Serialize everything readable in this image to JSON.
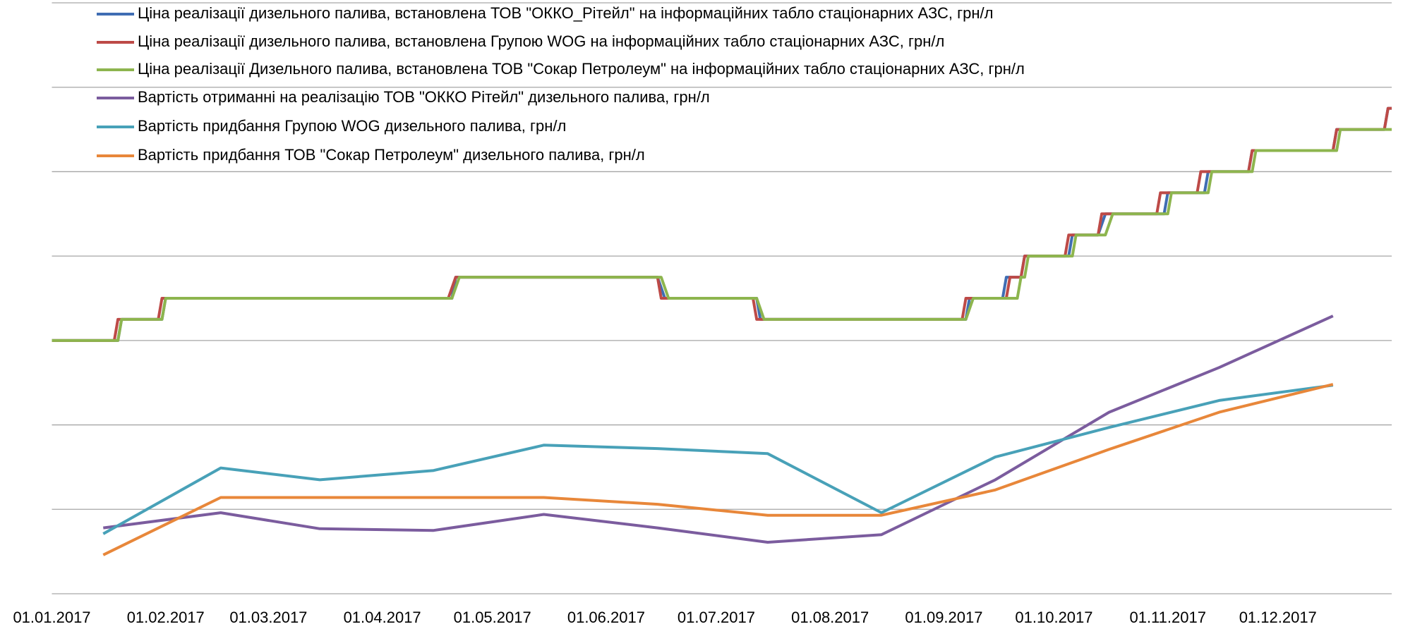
{
  "chart_data": {
    "type": "line",
    "xlim": [
      0,
      365
    ],
    "xticks": [
      {
        "value": 0,
        "label": "01.01.2017"
      },
      {
        "value": 31,
        "label": "01.02.2017"
      },
      {
        "value": 59,
        "label": "01.03.2017"
      },
      {
        "value": 90,
        "label": "01.04.2017"
      },
      {
        "value": 120,
        "label": "01.05.2017"
      },
      {
        "value": 151,
        "label": "01.06.2017"
      },
      {
        "value": 181,
        "label": "01.07.2017"
      },
      {
        "value": 212,
        "label": "01.08.2017"
      },
      {
        "value": 243,
        "label": "01.09.2017"
      },
      {
        "value": 273,
        "label": "01.10.2017"
      },
      {
        "value": 304,
        "label": "01.11.2017"
      },
      {
        "value": 334,
        "label": "01.12.2017"
      }
    ],
    "ylim": [
      0,
      7
    ],
    "yticks": [
      0,
      1,
      2,
      3,
      4,
      5,
      6,
      7
    ],
    "grid": true,
    "legend": "top",
    "series": [
      {
        "name": "Ціна реалізації дизельного палива, встановлена ТОВ \"ОККО_Рітейл\" на інформаційних табло стаціонарних АЗС, грн/л",
        "color": "#3f6db3",
        "x": [
          0,
          18,
          19,
          30,
          31,
          109,
          110,
          165,
          167,
          192,
          193,
          249,
          250,
          259,
          260,
          264,
          265,
          277,
          278,
          285,
          287,
          303,
          304,
          314,
          315,
          326,
          327,
          349,
          350,
          363,
          364,
          365
        ],
        "values": [
          3,
          3,
          3.25,
          3.25,
          3.5,
          3.5,
          3.75,
          3.75,
          3.5,
          3.5,
          3.25,
          3.25,
          3.5,
          3.5,
          3.75,
          3.75,
          4,
          4,
          4.25,
          4.25,
          4.5,
          4.5,
          4.75,
          4.75,
          5,
          5,
          5.25,
          5.25,
          5.5,
          5.5,
          5.75,
          5.75
        ]
      },
      {
        "name": "Ціна реалізації дизельного палива, встановлена Групою WOG на інформаційних табло стаціонарних АЗС, грн/л",
        "color": "#bd4a47",
        "x": [
          0,
          17,
          18,
          29,
          30,
          108,
          110,
          165,
          166,
          191,
          192,
          248,
          249,
          260,
          261,
          264,
          265,
          276,
          277,
          285,
          286,
          301,
          302,
          312,
          313,
          326,
          327,
          349,
          350,
          363,
          364,
          365
        ],
        "values": [
          3,
          3,
          3.25,
          3.25,
          3.5,
          3.5,
          3.75,
          3.75,
          3.5,
          3.5,
          3.25,
          3.25,
          3.5,
          3.5,
          3.75,
          3.75,
          4,
          4,
          4.25,
          4.25,
          4.5,
          4.5,
          4.75,
          4.75,
          5,
          5,
          5.25,
          5.25,
          5.5,
          5.5,
          5.75,
          5.75
        ]
      },
      {
        "name": "Ціна реалізації Дизельного палива, встановлена ТОВ \"Сокар Петролеум\" на інформаційних табло стаціонарних АЗС, грн/л",
        "color": "#8db54e",
        "x": [
          0,
          18,
          19,
          30,
          31,
          109,
          111,
          166,
          168,
          192,
          194,
          249,
          251,
          263,
          264,
          265,
          266,
          278,
          279,
          287,
          289,
          304,
          305,
          315,
          316,
          327,
          328,
          350,
          351,
          365
        ],
        "values": [
          3,
          3,
          3.25,
          3.25,
          3.5,
          3.5,
          3.75,
          3.75,
          3.5,
          3.5,
          3.25,
          3.25,
          3.5,
          3.5,
          3.75,
          3.75,
          4,
          4,
          4.25,
          4.25,
          4.5,
          4.5,
          4.75,
          4.75,
          5,
          5,
          5.25,
          5.25,
          5.5,
          5.5
        ]
      },
      {
        "name": "Вартість отриманні на реалізацію ТОВ \"ОККО Рітейл\" дизельного палива, грн/л",
        "color": "#7b5c9e",
        "x": [
          14,
          46,
          73,
          104,
          134,
          165,
          195,
          226,
          257,
          288,
          318,
          349
        ],
        "values": [
          0.78,
          0.96,
          0.77,
          0.75,
          0.94,
          0.78,
          0.61,
          0.7,
          1.35,
          2.15,
          2.68,
          3.29
        ]
      },
      {
        "name": "Вартість придбання Групою WOG дизельного палива, грн/л",
        "color": "#48a1b8",
        "x": [
          14,
          46,
          73,
          104,
          134,
          165,
          195,
          226,
          257,
          288,
          318,
          349
        ],
        "values": [
          0.71,
          1.49,
          1.35,
          1.46,
          1.76,
          1.72,
          1.66,
          0.96,
          1.62,
          1.97,
          2.29,
          2.47
        ]
      },
      {
        "name": "Вартість придбання ТОВ \"Сокар Петролеум\" дизельного палива, грн/л",
        "color": "#e8873a",
        "x": [
          14,
          46,
          73,
          104,
          134,
          165,
          195,
          226,
          257,
          288,
          318,
          349
        ],
        "values": [
          0.46,
          1.14,
          1.14,
          1.14,
          1.14,
          1.06,
          0.93,
          0.93,
          1.23,
          1.71,
          2.15,
          2.48
        ]
      }
    ]
  }
}
